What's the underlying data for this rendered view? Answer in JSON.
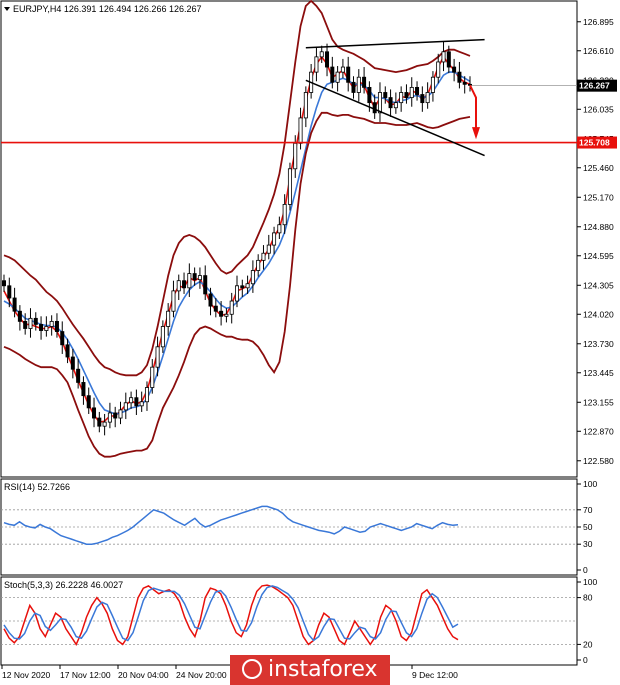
{
  "chart_data": [
    {
      "type": "candlestick",
      "title": "EURJPY,H4  126.391 126.494 126.266 126.267",
      "ylim": [
        122.45,
        127.05
      ],
      "y_ticks": [
        "126.895",
        "126.610",
        "126.320",
        "126.035",
        "125.745",
        "125.460",
        "125.170",
        "124.880",
        "124.595",
        "124.305",
        "124.020",
        "123.730",
        "123.445",
        "123.155",
        "122.870",
        "122.580"
      ],
      "current_price": "126.267",
      "support_line": "125.708",
      "closes": [
        124.3,
        124.18,
        124.05,
        123.95,
        123.88,
        123.98,
        123.92,
        123.86,
        123.9,
        123.95,
        123.85,
        123.72,
        123.6,
        123.48,
        123.35,
        123.22,
        123.1,
        123.0,
        122.92,
        122.96,
        123.05,
        123.0,
        123.08,
        123.15,
        123.2,
        123.12,
        123.16,
        123.3,
        123.5,
        123.7,
        123.9,
        124.05,
        124.25,
        124.35,
        124.28,
        124.42,
        124.36,
        124.4,
        124.22,
        124.1,
        124.05,
        124.0,
        124.02,
        124.15,
        124.3,
        124.28,
        124.32,
        124.45,
        124.55,
        124.62,
        124.7,
        124.82,
        124.9,
        125.1,
        125.45,
        125.7,
        125.95,
        126.2,
        126.4,
        126.55,
        126.6,
        126.45,
        126.3,
        126.4,
        126.45,
        126.3,
        126.2,
        126.35,
        126.25,
        126.1,
        126.0,
        126.2,
        126.15,
        126.05,
        126.1,
        126.2,
        126.15,
        126.25,
        126.18,
        126.1,
        126.2,
        126.35,
        126.5,
        126.6,
        126.45,
        126.4,
        126.3,
        126.28,
        126.27
      ],
      "bands": [
        {
          "name": "MA fast",
          "color": "#e8100c",
          "values": [
            124.25,
            124.15,
            124.05,
            123.98,
            123.92,
            123.92,
            123.9,
            123.88,
            123.88,
            123.9,
            123.85,
            123.75,
            123.62,
            123.5,
            123.37,
            123.25,
            123.13,
            123.03,
            122.96,
            122.97,
            123.02,
            123.02,
            123.07,
            123.13,
            123.17,
            123.14,
            123.16,
            123.27,
            123.45,
            123.65,
            123.85,
            124.02,
            124.2,
            124.3,
            124.28,
            124.38,
            124.35,
            124.38,
            124.25,
            124.13,
            124.06,
            124.01,
            124.02,
            124.12,
            124.25,
            124.27,
            124.3,
            124.41,
            124.51,
            124.58,
            124.66,
            124.78,
            124.87,
            125.05,
            125.37,
            125.63,
            125.88,
            126.12,
            126.33,
            126.48,
            126.55,
            126.48,
            126.35,
            126.38,
            126.42,
            126.33,
            126.24,
            126.31,
            126.27,
            126.15,
            126.05,
            126.15,
            126.14,
            126.08,
            126.09,
            126.16,
            126.15,
            126.22,
            126.19,
            126.13,
            126.18,
            126.31,
            126.45,
            126.55,
            126.48,
            126.42,
            126.34,
            126.3,
            126.28
          ]
        },
        {
          "name": "MA slow",
          "color": "#3a78d8",
          "values": [
            124.15,
            124.12,
            124.08,
            124.03,
            123.98,
            123.96,
            123.94,
            123.92,
            123.91,
            123.91,
            123.89,
            123.84,
            123.77,
            123.68,
            123.58,
            123.47,
            123.36,
            123.25,
            123.15,
            123.08,
            123.06,
            123.04,
            123.05,
            123.07,
            123.1,
            123.11,
            123.13,
            123.19,
            123.3,
            123.45,
            123.61,
            123.78,
            123.95,
            124.09,
            124.18,
            124.26,
            124.31,
            124.34,
            124.3,
            124.24,
            124.17,
            124.11,
            124.08,
            124.09,
            124.14,
            124.19,
            124.23,
            124.3,
            124.38,
            124.45,
            124.52,
            124.61,
            124.7,
            124.83,
            125.02,
            125.22,
            125.43,
            125.65,
            125.87,
            126.05,
            126.2,
            126.28,
            126.3,
            126.32,
            126.34,
            126.32,
            126.28,
            126.28,
            126.27,
            126.22,
            126.15,
            126.15,
            126.14,
            126.11,
            126.1,
            126.12,
            126.13,
            126.16,
            126.17,
            126.15,
            126.16,
            126.21,
            126.29,
            126.37,
            126.4,
            126.4,
            126.37,
            126.34,
            126.31
          ]
        },
        {
          "name": "Bollinger upper",
          "color": "#8b0d0d",
          "values": [
            124.6,
            124.58,
            124.55,
            124.5,
            124.45,
            124.4,
            124.36,
            124.3,
            124.24,
            124.2,
            124.15,
            124.08,
            124.0,
            123.92,
            123.85,
            123.78,
            123.7,
            123.62,
            123.55,
            123.5,
            123.48,
            123.45,
            123.43,
            123.42,
            123.42,
            123.42,
            123.45,
            123.52,
            123.68,
            123.9,
            124.15,
            124.4,
            124.6,
            124.72,
            124.78,
            124.8,
            124.78,
            124.74,
            124.68,
            124.6,
            124.52,
            124.45,
            124.42,
            124.44,
            124.5,
            124.55,
            124.6,
            124.68,
            124.8,
            124.92,
            125.05,
            125.2,
            125.4,
            125.7,
            126.1,
            126.5,
            126.85,
            127.05,
            127.1,
            127.05,
            126.98,
            126.85,
            126.72,
            126.65,
            126.62,
            126.6,
            126.58,
            126.55,
            126.52,
            126.48,
            126.44,
            126.43,
            126.42,
            126.41,
            126.4,
            126.41,
            126.42,
            126.44,
            126.46,
            126.47,
            126.48,
            126.51,
            126.55,
            126.6,
            126.62,
            126.62,
            126.6,
            126.58,
            126.56
          ]
        },
        {
          "name": "Bollinger lower",
          "color": "#8b0d0d",
          "values": [
            123.7,
            123.68,
            123.65,
            123.62,
            123.58,
            123.55,
            123.52,
            123.5,
            123.5,
            123.5,
            123.48,
            123.42,
            123.35,
            123.22,
            123.08,
            122.95,
            122.82,
            122.72,
            122.65,
            122.62,
            122.62,
            122.63,
            122.65,
            122.66,
            122.67,
            122.68,
            122.68,
            122.7,
            122.78,
            122.95,
            123.1,
            123.2,
            123.3,
            123.42,
            123.55,
            123.7,
            123.82,
            123.88,
            123.9,
            123.88,
            123.85,
            123.82,
            123.8,
            123.8,
            123.78,
            123.77,
            123.77,
            123.75,
            123.7,
            123.62,
            123.52,
            123.45,
            123.55,
            123.85,
            124.3,
            124.85,
            125.3,
            125.6,
            125.8,
            125.92,
            126.0,
            126.0,
            125.98,
            125.97,
            125.98,
            125.98,
            125.96,
            125.95,
            125.94,
            125.92,
            125.9,
            125.9,
            125.9,
            125.89,
            125.88,
            125.88,
            125.88,
            125.89,
            125.9,
            125.88,
            125.86,
            125.85,
            125.86,
            125.88,
            125.9,
            125.92,
            125.94,
            125.95,
            125.96
          ]
        }
      ],
      "x_ticks": [
        "12 Nov 2020",
        "17 Nov 12:00",
        "20 Nov 04:00",
        "24 Nov 20:00",
        "",
        "",
        "",
        "",
        "9 Dec 12:00"
      ]
    },
    {
      "type": "line",
      "title": "RSI(14) 52.7266",
      "ylim": [
        0,
        100
      ],
      "y_ticks": [
        "100",
        "70",
        "50",
        "30",
        "0"
      ],
      "series": [
        {
          "color": "#3a78d8",
          "values": [
            55,
            53,
            52,
            56,
            52,
            50,
            49,
            53,
            50,
            48,
            44,
            40,
            38,
            36,
            34,
            32,
            30,
            30,
            31,
            33,
            35,
            38,
            40,
            43,
            46,
            50,
            55,
            60,
            65,
            70,
            68,
            66,
            62,
            58,
            55,
            52,
            56,
            60,
            54,
            50,
            52,
            55,
            58,
            60,
            62,
            64,
            66,
            68,
            70,
            72,
            74,
            74,
            72,
            70,
            66,
            60,
            56,
            54,
            52,
            50,
            48,
            46,
            45,
            44,
            42,
            45,
            50,
            48,
            46,
            44,
            45,
            50,
            52,
            54,
            52,
            50,
            48,
            46,
            48,
            50,
            54,
            52,
            50,
            48,
            52,
            55,
            53,
            52,
            52.7
          ]
        }
      ]
    },
    {
      "type": "line",
      "title": "Stoch(5,3,3) 26.2228 46.0027",
      "ylim": [
        0,
        100
      ],
      "y_ticks": [
        "100",
        "80",
        "20",
        "0"
      ],
      "series": [
        {
          "name": "main",
          "color": "#e8100c",
          "values": [
            40,
            28,
            22,
            30,
            50,
            70,
            60,
            40,
            30,
            45,
            60,
            55,
            40,
            30,
            20,
            35,
            55,
            70,
            80,
            72,
            60,
            40,
            25,
            20,
            30,
            55,
            80,
            92,
            95,
            90,
            85,
            88,
            90,
            85,
            75,
            55,
            40,
            30,
            50,
            80,
            92,
            90,
            85,
            70,
            50,
            35,
            30,
            45,
            70,
            88,
            95,
            96,
            94,
            90,
            85,
            80,
            70,
            50,
            30,
            20,
            25,
            45,
            60,
            55,
            40,
            25,
            20,
            35,
            50,
            40,
            30,
            20,
            30,
            55,
            70,
            65,
            50,
            30,
            25,
            35,
            60,
            85,
            90,
            80,
            70,
            55,
            40,
            30,
            26
          ]
        },
        {
          "name": "signal",
          "color": "#3a78d8",
          "values": [
            45,
            35,
            28,
            27,
            34,
            50,
            60,
            57,
            43,
            38,
            45,
            53,
            52,
            42,
            30,
            28,
            37,
            53,
            68,
            74,
            71,
            57,
            42,
            28,
            25,
            35,
            55,
            76,
            89,
            92,
            90,
            88,
            88,
            88,
            83,
            72,
            57,
            42,
            40,
            57,
            74,
            87,
            89,
            82,
            68,
            52,
            38,
            37,
            48,
            68,
            84,
            93,
            95,
            93,
            89,
            85,
            78,
            67,
            50,
            33,
            25,
            30,
            43,
            53,
            52,
            40,
            28,
            27,
            35,
            42,
            40,
            30,
            27,
            35,
            52,
            63,
            62,
            48,
            35,
            30,
            40,
            60,
            78,
            85,
            80,
            68,
            55,
            42,
            46
          ]
        }
      ]
    }
  ],
  "watermark": "instaforex"
}
